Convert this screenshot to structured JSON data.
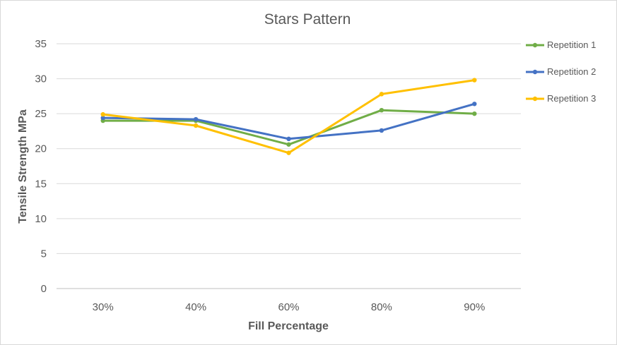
{
  "chart_data": {
    "type": "line",
    "title": "Stars Pattern",
    "xlabel": "Fill Percentage",
    "ylabel": "Tensile Strength MPa",
    "categories": [
      "30%",
      "40%",
      "60%",
      "80%",
      "90%"
    ],
    "ylim": [
      0,
      35
    ],
    "yticks": [
      0,
      5,
      10,
      15,
      20,
      25,
      30,
      35
    ],
    "grid": "horizontal",
    "legend_position": "right",
    "series": [
      {
        "name": "Repetition 1",
        "color": "#70ad47",
        "values": [
          24.0,
          24.0,
          20.6,
          25.5,
          25.0
        ]
      },
      {
        "name": "Repetition 2",
        "color": "#4472c4",
        "values": [
          24.4,
          24.2,
          21.4,
          22.6,
          26.4
        ]
      },
      {
        "name": "Repetition 3",
        "color": "#ffc000",
        "values": [
          24.9,
          23.3,
          19.4,
          27.8,
          29.8
        ]
      }
    ]
  }
}
